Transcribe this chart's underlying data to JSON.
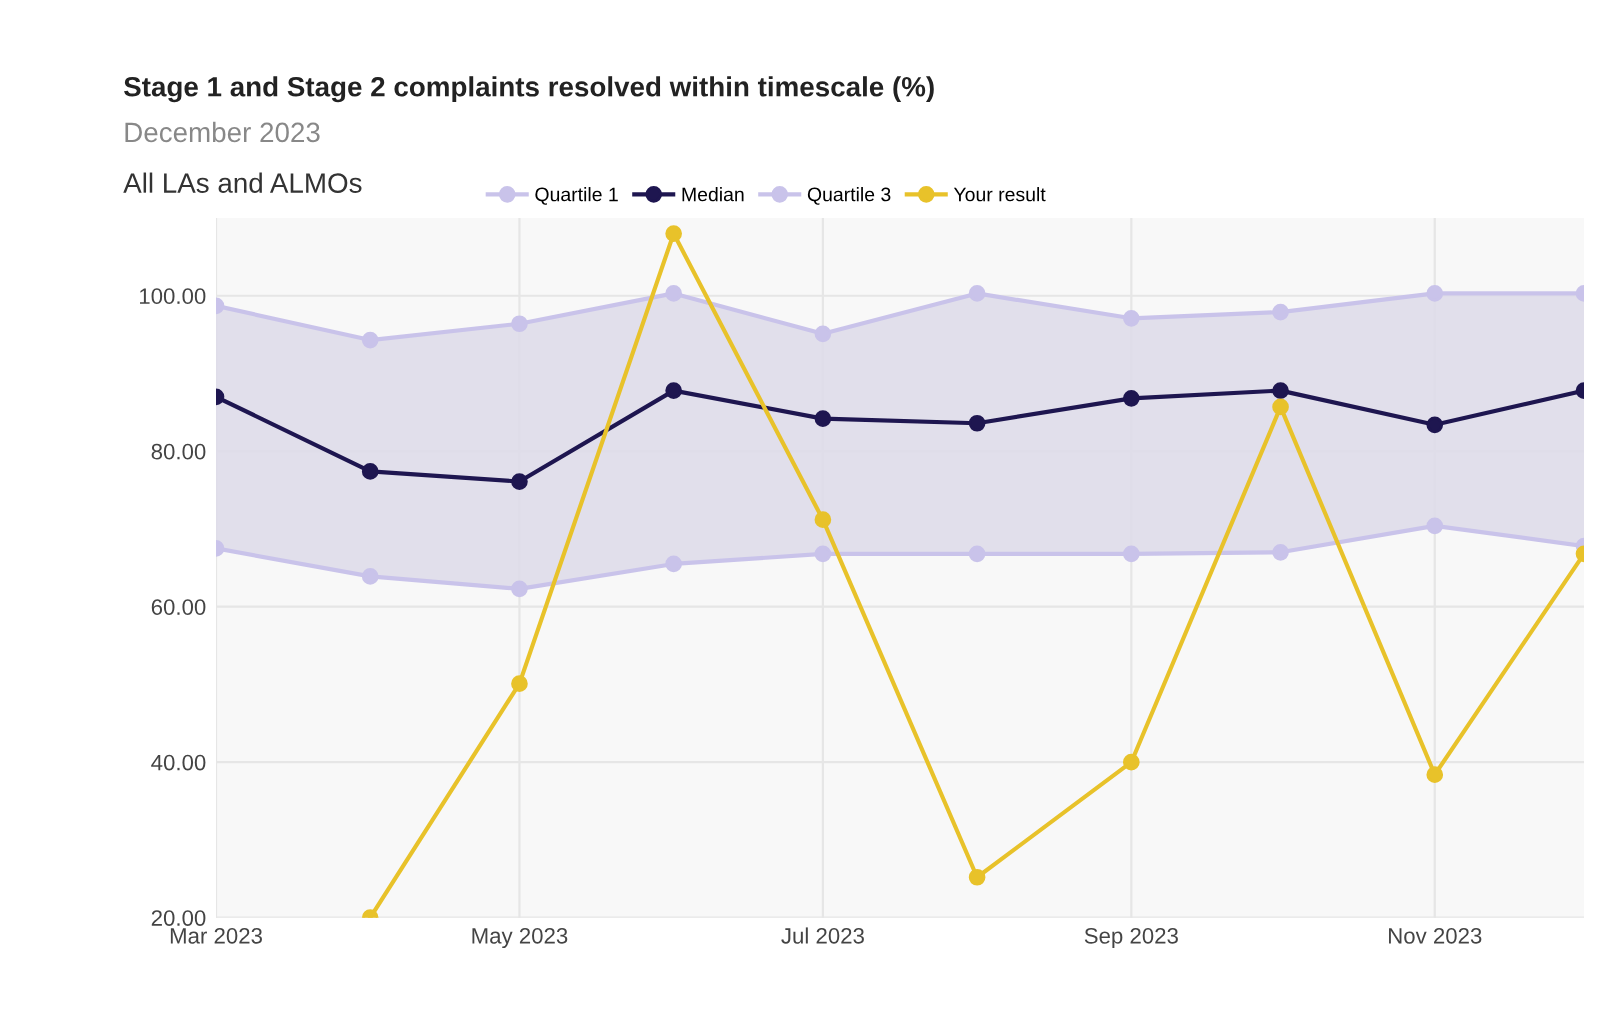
{
  "chart_data": {
    "type": "line",
    "title": "Stage 1 and Stage 2 complaints resolved within timescale (%)",
    "subtitle": "December 2023",
    "legend_title": "All LAs and ALMOs",
    "x": [
      "2023-03",
      "2023-04",
      "2023-05",
      "2023-06",
      "2023-07",
      "2023-08",
      "2023-09",
      "2023-10",
      "2023-11",
      "2023-12"
    ],
    "series": [
      {
        "name": "Quartile 1",
        "color": "#c9c3ea",
        "values": [
          67.5,
          63.9,
          62.3,
          65.5,
          66.8,
          66.8,
          66.8,
          67.0,
          70.4,
          67.8
        ]
      },
      {
        "name": "Median",
        "color": "#1e1650",
        "values": [
          87.0,
          77.4,
          76.1,
          87.8,
          84.2,
          83.6,
          86.8,
          87.8,
          83.4,
          87.8
        ],
        "lower": [
          67.5,
          63.9,
          62.3,
          65.5,
          66.8,
          66.8,
          66.8,
          67.0,
          70.4,
          67.8
        ],
        "upper": [
          98.7,
          94.3,
          96.4,
          100.3,
          95.1,
          100.3,
          97.1,
          97.9,
          100.3,
          100.3
        ]
      },
      {
        "name": "Quartile 3",
        "color": "#c9c3ea",
        "values": [
          98.7,
          94.3,
          96.4,
          100.3,
          95.1,
          100.3,
          97.1,
          97.9,
          100.3,
          100.3
        ]
      },
      {
        "name": "Your result",
        "color": "#e8c22a",
        "values": [
          null,
          20.0,
          50.1,
          108.0,
          71.2,
          25.2,
          40.0,
          85.7,
          38.4,
          66.8
        ]
      }
    ],
    "xlim": [
      "2023-03",
      "2023-12"
    ],
    "xticks": [
      {
        "value": "2023-03",
        "label": "Mar 2023"
      },
      {
        "value": "2023-05",
        "label": "May 2023"
      },
      {
        "value": "2023-07",
        "label": "Jul 2023"
      },
      {
        "value": "2023-09",
        "label": "Sep 2023"
      },
      {
        "value": "2023-11",
        "label": "Nov 2023"
      }
    ],
    "ylim": [
      20,
      110
    ],
    "yticks": [
      {
        "value": 20,
        "label": "20.00"
      },
      {
        "value": 40,
        "label": "40.00"
      },
      {
        "value": 60,
        "label": "60.00"
      },
      {
        "value": 80,
        "label": "80.00"
      },
      {
        "value": 100,
        "label": "100.00"
      }
    ],
    "grid": true,
    "legend": "top",
    "marker": "circle",
    "line_style": "solid"
  }
}
